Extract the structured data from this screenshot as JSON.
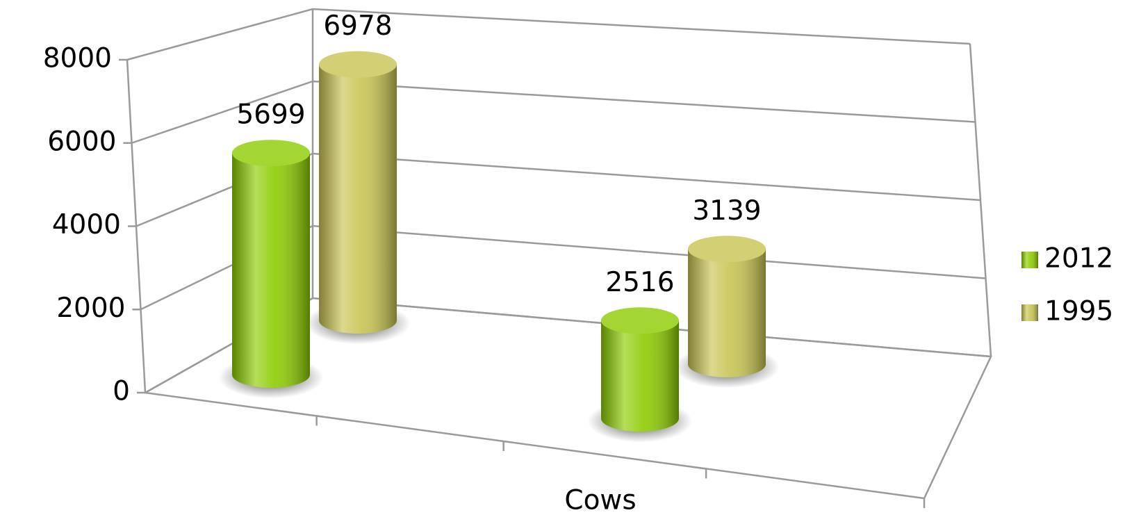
{
  "chart_data": {
    "type": "cylinder3d",
    "categories": [
      null,
      "Cows"
    ],
    "series": [
      {
        "name": "2012",
        "color": "#8ccc00",
        "values": [
          5699,
          2516
        ]
      },
      {
        "name": "1995",
        "color": "#c8c452",
        "values": [
          6978,
          3139
        ]
      }
    ],
    "ylim": [
      0,
      8000
    ],
    "yticks": [
      0,
      2000,
      4000,
      6000,
      8000
    ],
    "grid": true,
    "legend": "right"
  }
}
